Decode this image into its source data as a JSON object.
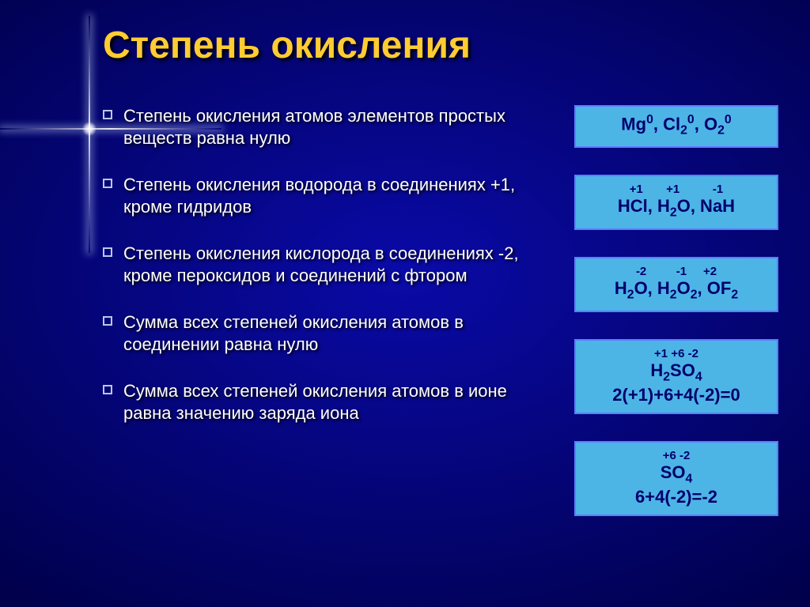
{
  "colors": {
    "bg_outer": "#00004d",
    "bg_inner": "#0a0aa8",
    "title": "#ffcc33",
    "rule_text": "#ffffff",
    "bullet_border": "#b8c8e8",
    "box_bg": "#4db4e6",
    "box_border": "#5e7cff",
    "box_text": "#00006b",
    "charge_text": "#00006b"
  },
  "fonts": {
    "title_size": 48,
    "rule_size": 22,
    "box_size": 22,
    "charge_size": 15
  },
  "layout": {
    "rule_gap": 32,
    "box_gap": 34
  },
  "title": "Степень окисления",
  "rules": [
    "Степень окисления атомов элементов простых веществ равна нулю",
    "Степень окисления водорода в соединениях +1, кроме гидридов",
    "Степень окисления кислорода в соединениях -2, кроме пероксидов и соединений с фтором",
    "Сумма всех степеней окисления атомов в соединении равна нулю",
    "Сумма всех степеней окисления атомов в ионе равна значению заряда иона"
  ],
  "examples": [
    {
      "charges": "",
      "html": "Mg<sup>0</sup>, Cl<sub>2</sub><sup>0</sup>, O<sub>2</sub><sup>0</sup>"
    },
    {
      "charges": "+1&nbsp;&nbsp;&nbsp;&nbsp;&nbsp;&nbsp;&nbsp;+1&nbsp;&nbsp;&nbsp;&nbsp;&nbsp;&nbsp;&nbsp;&nbsp;&nbsp;&nbsp;-1",
      "html": "HCl, H<sub>2</sub>O, NaH"
    },
    {
      "charges": "-2&nbsp;&nbsp;&nbsp;&nbsp;&nbsp;&nbsp;&nbsp;&nbsp;&nbsp;-1&nbsp;&nbsp;&nbsp;&nbsp;&nbsp;+2",
      "html": "H<sub>2</sub>O, H<sub>2</sub>O<sub>2</sub>, OF<sub>2</sub>"
    },
    {
      "charges": "+1 +6 -2",
      "html": "H<sub>2</sub>SO<sub>4</sub><br>2(+1)+6+4(-2)=0"
    },
    {
      "charges": "+6 -2",
      "html": "SO<sub>4</sub><br>6+4(-2)=-2"
    }
  ]
}
